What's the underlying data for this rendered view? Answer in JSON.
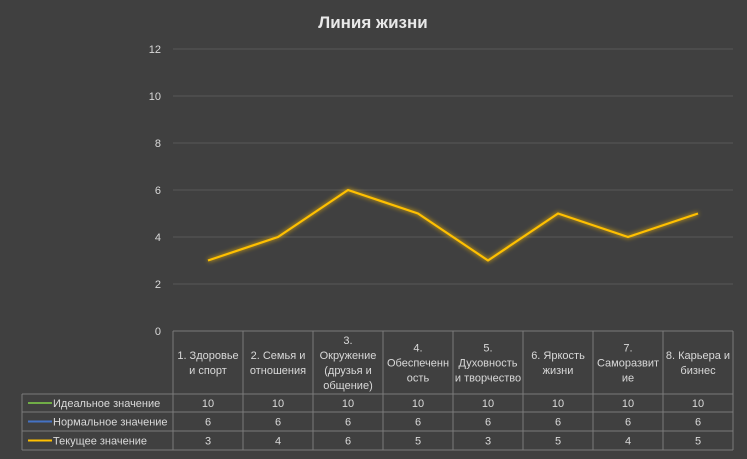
{
  "chart_data": {
    "type": "line",
    "title": "Линия жизни",
    "categories": [
      [
        "1. Здоровье",
        "и спорт"
      ],
      [
        "2. Семья и",
        "отношения"
      ],
      [
        "3.",
        "Окружение",
        "(друзья и",
        "общение)"
      ],
      [
        "4.",
        "Обеспеченн",
        "ость"
      ],
      [
        "5.",
        "Духовность",
        "и творчество"
      ],
      [
        "6. Яркость",
        "жизни"
      ],
      [
        "7.",
        "Саморазвит",
        "ие"
      ],
      [
        "8. Карьера и",
        "бизнес"
      ]
    ],
    "series": [
      {
        "name": "Идеальное значение",
        "color": "#70ad47",
        "values": [
          10,
          10,
          10,
          10,
          10,
          10,
          10,
          10
        ]
      },
      {
        "name": "Нормальное значение",
        "color": "#4472c4",
        "values": [
          6,
          6,
          6,
          6,
          6,
          6,
          6,
          6
        ]
      },
      {
        "name": "Текущее значение",
        "color": "#ffc000",
        "values": [
          3,
          4,
          6,
          5,
          3,
          5,
          4,
          5
        ]
      }
    ],
    "ylim": [
      0,
      12
    ],
    "yticks": [
      0,
      2,
      4,
      6,
      8,
      10,
      12
    ],
    "grid": true,
    "legend": "data-table",
    "background": "#404040"
  }
}
